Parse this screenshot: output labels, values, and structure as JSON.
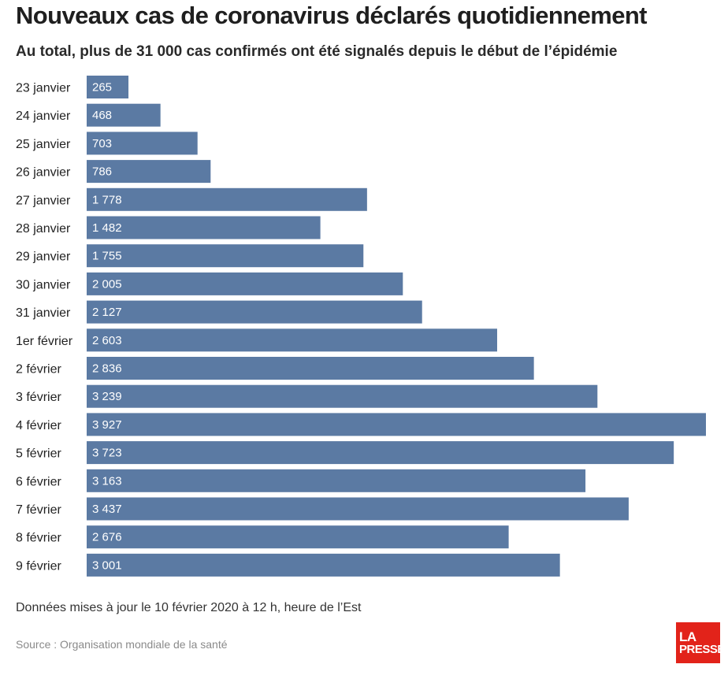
{
  "title": "Nouveaux cas de coronavirus déclarés quotidiennement",
  "subtitle": "Au total, plus de 31 000 cas confirmés ont été signalés depuis le début de l’épidémie",
  "note": "Données mises à jour le 10 février 2020 à 12 h, heure de l’Est",
  "source": "Source : Organisation mondiale de la santé",
  "logo": {
    "line1": "LA",
    "line2": "PRESSE",
    "color": "#e2231a"
  },
  "bar_color": "#5b7aa3",
  "chart_data": {
    "type": "bar",
    "orientation": "horizontal",
    "categories": [
      "23 janvier",
      "24 janvier",
      "25 janvier",
      "26 janvier",
      "27 janvier",
      "28 janvier",
      "29 janvier",
      "30 janvier",
      "31 janvier",
      "1er février",
      "2 février",
      "3 février",
      "4 février",
      "5 février",
      "6 février",
      "7 février",
      "8 février",
      "9 février"
    ],
    "values": [
      265,
      468,
      703,
      786,
      1778,
      1482,
      1755,
      2005,
      2127,
      2603,
      2836,
      3239,
      3927,
      3723,
      3163,
      3437,
      2676,
      3001
    ],
    "value_labels": [
      "265",
      "468",
      "703",
      "786",
      "1 778",
      "1 482",
      "1 755",
      "2 005",
      "2 127",
      "2 603",
      "2 836",
      "3 239",
      "3 927",
      "3 723",
      "3 163",
      "3 437",
      "2 676",
      "3 001"
    ],
    "title": "Nouveaux cas de coronavirus déclarés quotidiennement",
    "xlabel": "",
    "ylabel": "",
    "xlim": [
      0,
      3927
    ],
    "grid": false,
    "legend": "none"
  }
}
